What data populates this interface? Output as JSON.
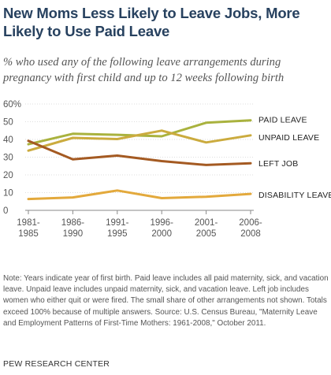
{
  "title": "New Moms Less Likely to Leave Jobs, More Likely to Use Paid Leave",
  "subtitle": "% who used any of the following leave arrangements during pregnancy with first child and up to 12 weeks following birth",
  "note": "Note: Years indicate year of first birth. Paid leave includes all paid maternity, sick, and vacation leave. Unpaid leave includes unpaid maternity, sick, and vacation leave. Left job includes women who either quit or were fired. The small share of other arrangements not shown. Totals exceed 100% because of multiple answers. Source: U.S. Census Bureau, \"Maternity Leave and Employment Patterns of First-Time Mothers: 1961-2008,\" October 2011.",
  "source_org": "PEW RESEARCH CENTER",
  "chart_data": {
    "type": "line",
    "categories": [
      [
        "1981-",
        "1985"
      ],
      [
        "1986-",
        "1990"
      ],
      [
        "1991-",
        "1995"
      ],
      [
        "1996-",
        "2000"
      ],
      [
        "2001-",
        "2005"
      ],
      [
        "2006-",
        "2008"
      ]
    ],
    "y_ticks": [
      "60%",
      "50",
      "40",
      "30",
      "20",
      "10",
      "0"
    ],
    "ylim": [
      0,
      60
    ],
    "grid": true,
    "series": [
      {
        "name": "PAID LEAVE",
        "color": "#a9b23e",
        "values": [
          37.3,
          43.2,
          42.6,
          41.8,
          49.4,
          50.8
        ]
      },
      {
        "name": "UNPAID LEAVE",
        "color": "#cbab3e",
        "values": [
          33.7,
          40.9,
          40.2,
          45.0,
          38.3,
          42.3
        ]
      },
      {
        "name": "LEFT JOB",
        "color": "#a45a22",
        "values": [
          39.2,
          28.8,
          30.9,
          27.8,
          25.6,
          26.6
        ]
      },
      {
        "name": "DISABILITY LEAVE",
        "color": "#e3a93c",
        "values": [
          6.4,
          7.3,
          11.2,
          6.9,
          7.7,
          9.3
        ]
      }
    ]
  }
}
